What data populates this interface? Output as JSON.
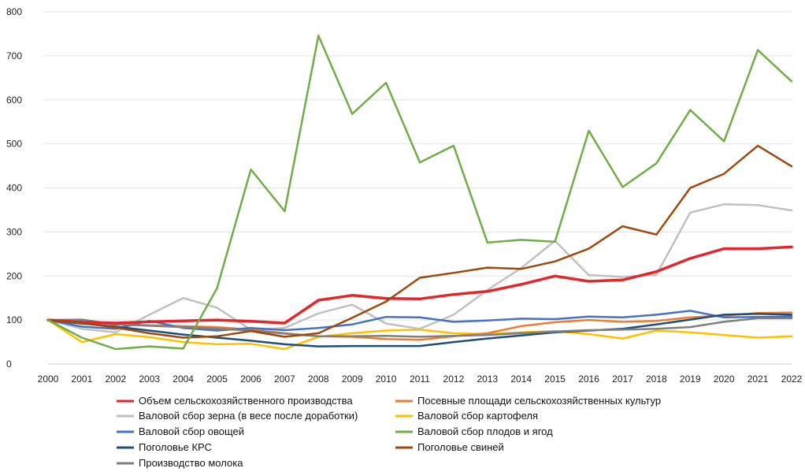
{
  "chart_data": {
    "type": "line",
    "title": "",
    "xlabel": "",
    "ylabel": "",
    "ylim": [
      0,
      800
    ],
    "y_ticks": [
      "0",
      "100",
      "200",
      "300",
      "400",
      "500",
      "600",
      "700",
      "800"
    ],
    "grid": "horizontal",
    "legend_position": "bottom",
    "x": [
      "2000",
      "2001",
      "2002",
      "2003",
      "2004",
      "2005",
      "2006",
      "2007",
      "2008",
      "2009",
      "2010",
      "2011",
      "2012",
      "2013",
      "2014",
      "2015",
      "2016",
      "2017",
      "2018",
      "2019",
      "2020",
      "2021",
      "2022"
    ],
    "series": [
      {
        "name": "Объем сельскохозяйственного производства",
        "color": "#e3262b",
        "values": [
          100,
          95,
          93,
          96,
          98,
          100,
          97,
          93,
          145,
          156,
          149,
          148,
          158,
          165,
          181,
          200,
          188,
          191,
          210,
          240,
          262,
          262,
          266
        ]
      },
      {
        "name": "Посевные площади сельскохозяйственных культур",
        "color": "#ed7d31",
        "values": [
          100,
          96,
          90,
          88,
          86,
          84,
          78,
          70,
          63,
          62,
          57,
          55,
          63,
          70,
          86,
          95,
          100,
          96,
          98,
          106,
          110,
          116,
          117
        ]
      },
      {
        "name": "Валовой сбор зерна (в весе после доработки)",
        "color": "#c0c0c0",
        "values": [
          100,
          80,
          72,
          112,
          150,
          128,
          78,
          82,
          115,
          135,
          92,
          80,
          112,
          168,
          218,
          280,
          202,
          198,
          203,
          344,
          363,
          361,
          349
        ]
      },
      {
        "name": "Валовой сбор картофеля",
        "color": "#ffc000",
        "values": [
          100,
          50,
          68,
          61,
          50,
          45,
          46,
          34,
          62,
          70,
          76,
          78,
          70,
          68,
          72,
          75,
          68,
          58,
          76,
          72,
          66,
          60,
          63
        ]
      },
      {
        "name": "Валовой сбор овощей",
        "color": "#4472c4",
        "values": [
          100,
          85,
          80,
          98,
          82,
          76,
          82,
          77,
          82,
          90,
          107,
          106,
          96,
          99,
          103,
          102,
          108,
          106,
          112,
          121,
          106,
          107,
          108
        ]
      },
      {
        "name": "Валовой сбор плодов и ягод",
        "color": "#70ad47",
        "values": [
          100,
          60,
          34,
          40,
          35,
          172,
          442,
          347,
          746,
          568,
          639,
          458,
          496,
          276,
          282,
          278,
          530,
          402,
          456,
          577,
          506,
          713,
          642
        ]
      },
      {
        "name": "Поголовье КРС",
        "color": "#1f4e79",
        "values": [
          100,
          92,
          85,
          76,
          67,
          60,
          53,
          45,
          40,
          41,
          41,
          41,
          50,
          58,
          65,
          72,
          76,
          80,
          90,
          101,
          112,
          114,
          112
        ]
      },
      {
        "name": "Поголовье свиней",
        "color": "#9e480e",
        "values": [
          100,
          93,
          83,
          70,
          60,
          63,
          75,
          62,
          70,
          105,
          142,
          196,
          207,
          219,
          216,
          233,
          262,
          313,
          294,
          400,
          432,
          496,
          449
        ]
      },
      {
        "name": "Производство молока",
        "color": "#7f7f7f",
        "values": [
          100,
          101,
          90,
          87,
          84,
          80,
          76,
          69,
          63,
          63,
          64,
          62,
          64,
          66,
          70,
          74,
          77,
          78,
          80,
          84,
          96,
          104,
          104
        ]
      }
    ]
  }
}
